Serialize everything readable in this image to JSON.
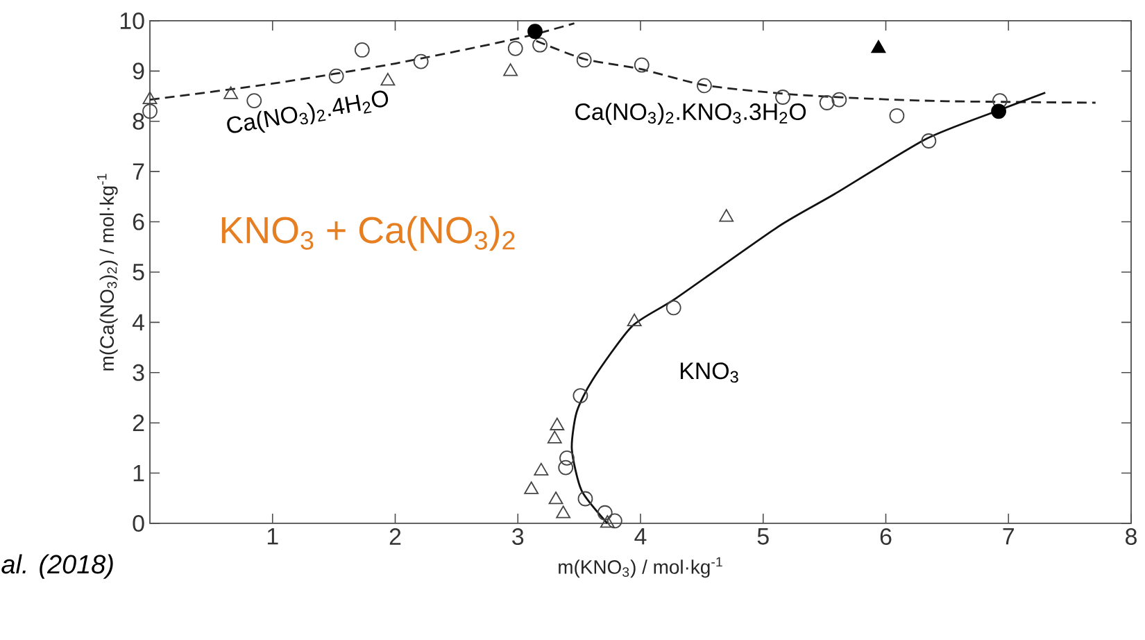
{
  "chart_data": {
    "type": "scatter",
    "xlabel": "m(KNO$_{3}$) / mol·kg$^{-1}$",
    "ylabel": "m(Ca(NO$_{3}$)$_{2}$) / mol·kg$^{-1}$",
    "xlim": [
      0,
      8
    ],
    "ylim": [
      0,
      10
    ],
    "xticks": [
      1,
      2,
      3,
      4,
      5,
      6,
      7,
      8
    ],
    "yticks": [
      0,
      1,
      2,
      3,
      4,
      5,
      6,
      7,
      8,
      9,
      10
    ],
    "grid": false,
    "series": [
      {
        "marker": "circle",
        "color": "#444444",
        "x": [
          0,
          0.85,
          1.52,
          1.73,
          2.21,
          2.98,
          3.18,
          3.54,
          4.01,
          4.52,
          5.16,
          5.52,
          5.62,
          6.09,
          6.35,
          6.93,
          4.27,
          3.51,
          3.4,
          3.39,
          3.55,
          3.71,
          3.79
        ],
        "values": [
          8.2,
          8.41,
          8.9,
          9.42,
          9.19,
          9.45,
          9.52,
          9.22,
          9.12,
          8.71,
          8.48,
          8.37,
          8.43,
          8.11,
          7.61,
          8.41,
          4.29,
          2.54,
          1.3,
          1.11,
          0.49,
          0.21,
          0.05
        ]
      },
      {
        "marker": "triangle",
        "color": "#444444",
        "x": [
          0,
          0.66,
          1.94,
          2.94,
          4.7,
          3.95,
          3.32,
          3.3,
          3.19,
          3.11,
          3.31,
          3.37,
          3.73
        ],
        "values": [
          8.43,
          8.53,
          8.8,
          8.99,
          6.09,
          4.01,
          1.94,
          1.68,
          1.04,
          0.67,
          0.47,
          0.19,
          0.0
        ]
      },
      {
        "marker": "circle",
        "color": "#000000",
        "x": [
          3.14,
          6.92
        ],
        "values": [
          9.79,
          8.2
        ]
      },
      {
        "marker": "triangle",
        "color": "#000000",
        "x": [
          5.94
        ],
        "values": [
          9.45
        ]
      },
      {
        "type": "line",
        "line_style": "dashed",
        "marker": "none",
        "color": "#222222",
        "x": [
          0,
          1,
          2,
          3,
          3.46
        ],
        "values": [
          8.43,
          8.75,
          9.15,
          9.65,
          9.95
        ]
      },
      {
        "type": "line",
        "line_style": "dashed",
        "marker": "none",
        "color": "#222222",
        "x": [
          3.15,
          3.54,
          4.0,
          4.52,
          5.16,
          5.77,
          6.5,
          7.71
        ],
        "values": [
          9.6,
          9.24,
          9.04,
          8.72,
          8.55,
          8.46,
          8.4,
          8.37
        ]
      },
      {
        "type": "line",
        "line_style": "solid",
        "marker": "none",
        "color": "#111111",
        "x": [
          3.73,
          3.52,
          3.44,
          3.48,
          3.61,
          3.93,
          4.29,
          5.12,
          5.58,
          6.33,
          6.9,
          7.3
        ],
        "values": [
          0,
          0.65,
          1.48,
          2.22,
          2.86,
          3.92,
          4.48,
          5.9,
          6.55,
          7.65,
          8.2,
          8.57
        ]
      }
    ],
    "annotations": [
      "Ca(NO$_{3}$)$_{2}$.4H$_{2}$O",
      "Ca(NO$_{3}$)$_{2}$.KNO$_{3}$.3H$_{2}$O",
      "KNO$_{3}$",
      "KNO$_{3}$ + Ca(NO$_{3}$)$_{2}$",
      "*al. (2018)*"
    ]
  }
}
